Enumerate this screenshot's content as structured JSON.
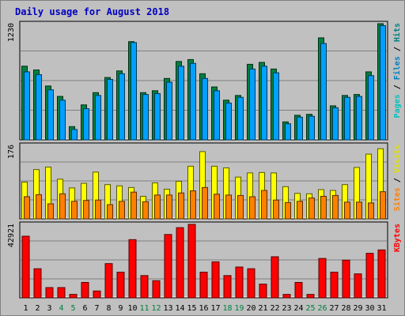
{
  "chart_data": {
    "type": "bar",
    "title": "Daily usage for August 2018",
    "categories": [
      "1",
      "2",
      "3",
      "4",
      "5",
      "6",
      "7",
      "8",
      "9",
      "10",
      "11",
      "12",
      "13",
      "14",
      "15",
      "16",
      "17",
      "18",
      "19",
      "20",
      "21",
      "22",
      "23",
      "24",
      "25",
      "26",
      "27",
      "28",
      "29",
      "30",
      "31"
    ],
    "weekend_days": [
      "4",
      "5",
      "11",
      "12",
      "18",
      "19",
      "25",
      "26"
    ],
    "panels": [
      {
        "id": "hits-panel",
        "ymax": 1230,
        "ymax_label": "1230",
        "side_label": [
          {
            "text": "Pages",
            "color": "#00c0c0"
          },
          {
            "text": " / ",
            "color": "#000000"
          },
          {
            "text": "Files",
            "color": "#0080c0"
          },
          {
            "text": " / ",
            "color": "#000000"
          },
          {
            "text": "Hits",
            "color": "#008080"
          }
        ],
        "series": [
          {
            "color": "#008040",
            "values": [
              780,
              740,
              570,
              460,
              140,
              370,
              500,
              660,
              730,
              1040,
              500,
              520,
              650,
              830,
              850,
              700,
              560,
              420,
              470,
              800,
              820,
              750,
              190,
              260,
              270,
              1080,
              360,
              470,
              480,
              720,
              1230
            ]
          },
          {
            "color": "#00a0ff",
            "values": [
              720,
              690,
              530,
              420,
              110,
              330,
              470,
              640,
              700,
              1030,
              480,
              490,
              610,
              780,
              810,
              650,
              520,
              390,
              450,
              750,
              780,
              710,
              170,
              240,
              250,
              1020,
              340,
              450,
              460,
              680,
              1210
            ]
          }
        ]
      },
      {
        "id": "visits-panel",
        "ymax": 176,
        "ymax_label": "176",
        "side_label": [
          {
            "text": "Sites",
            "color": "#ff8000"
          },
          {
            "text": " / ",
            "color": "#000000"
          },
          {
            "text": "Visits",
            "color": "#e0e000"
          }
        ],
        "series": [
          {
            "color": "#ffff00",
            "values": [
              88,
              118,
              124,
              95,
              74,
              85,
              112,
              82,
              79,
              75,
              54,
              86,
              71,
              90,
              126,
              161,
              126,
              122,
              100,
              110,
              111,
              110,
              77,
              61,
              60,
              70,
              68,
              82,
              123,
              155,
              168
            ]
          },
          {
            "color": "#ff8000",
            "values": [
              53,
              58,
              36,
              60,
              42,
              44,
              45,
              34,
              42,
              64,
              41,
              57,
              57,
              62,
              67,
              75,
              59,
              57,
              56,
              53,
              68,
              45,
              39,
              42,
              50,
              54,
              56,
              40,
              40,
              38,
              65
            ]
          }
        ]
      },
      {
        "id": "kbytes-panel",
        "ymax": 42921,
        "ymax_label": "42921",
        "side_label": [
          {
            "text": "KBytes",
            "color": "#ff0000"
          }
        ],
        "series": [
          {
            "color": "#ff0000",
            "values": [
              36000,
              17000,
              6000,
              6000,
              2000,
              9000,
              4000,
              20000,
              15000,
              34000,
              13000,
              10000,
              37000,
              41000,
              42921,
              15000,
              21000,
              13000,
              18000,
              17000,
              8000,
              24000,
              2000,
              9000,
              2000,
              23000,
              15000,
              22000,
              14000,
              26000,
              28000
            ]
          }
        ]
      }
    ]
  }
}
